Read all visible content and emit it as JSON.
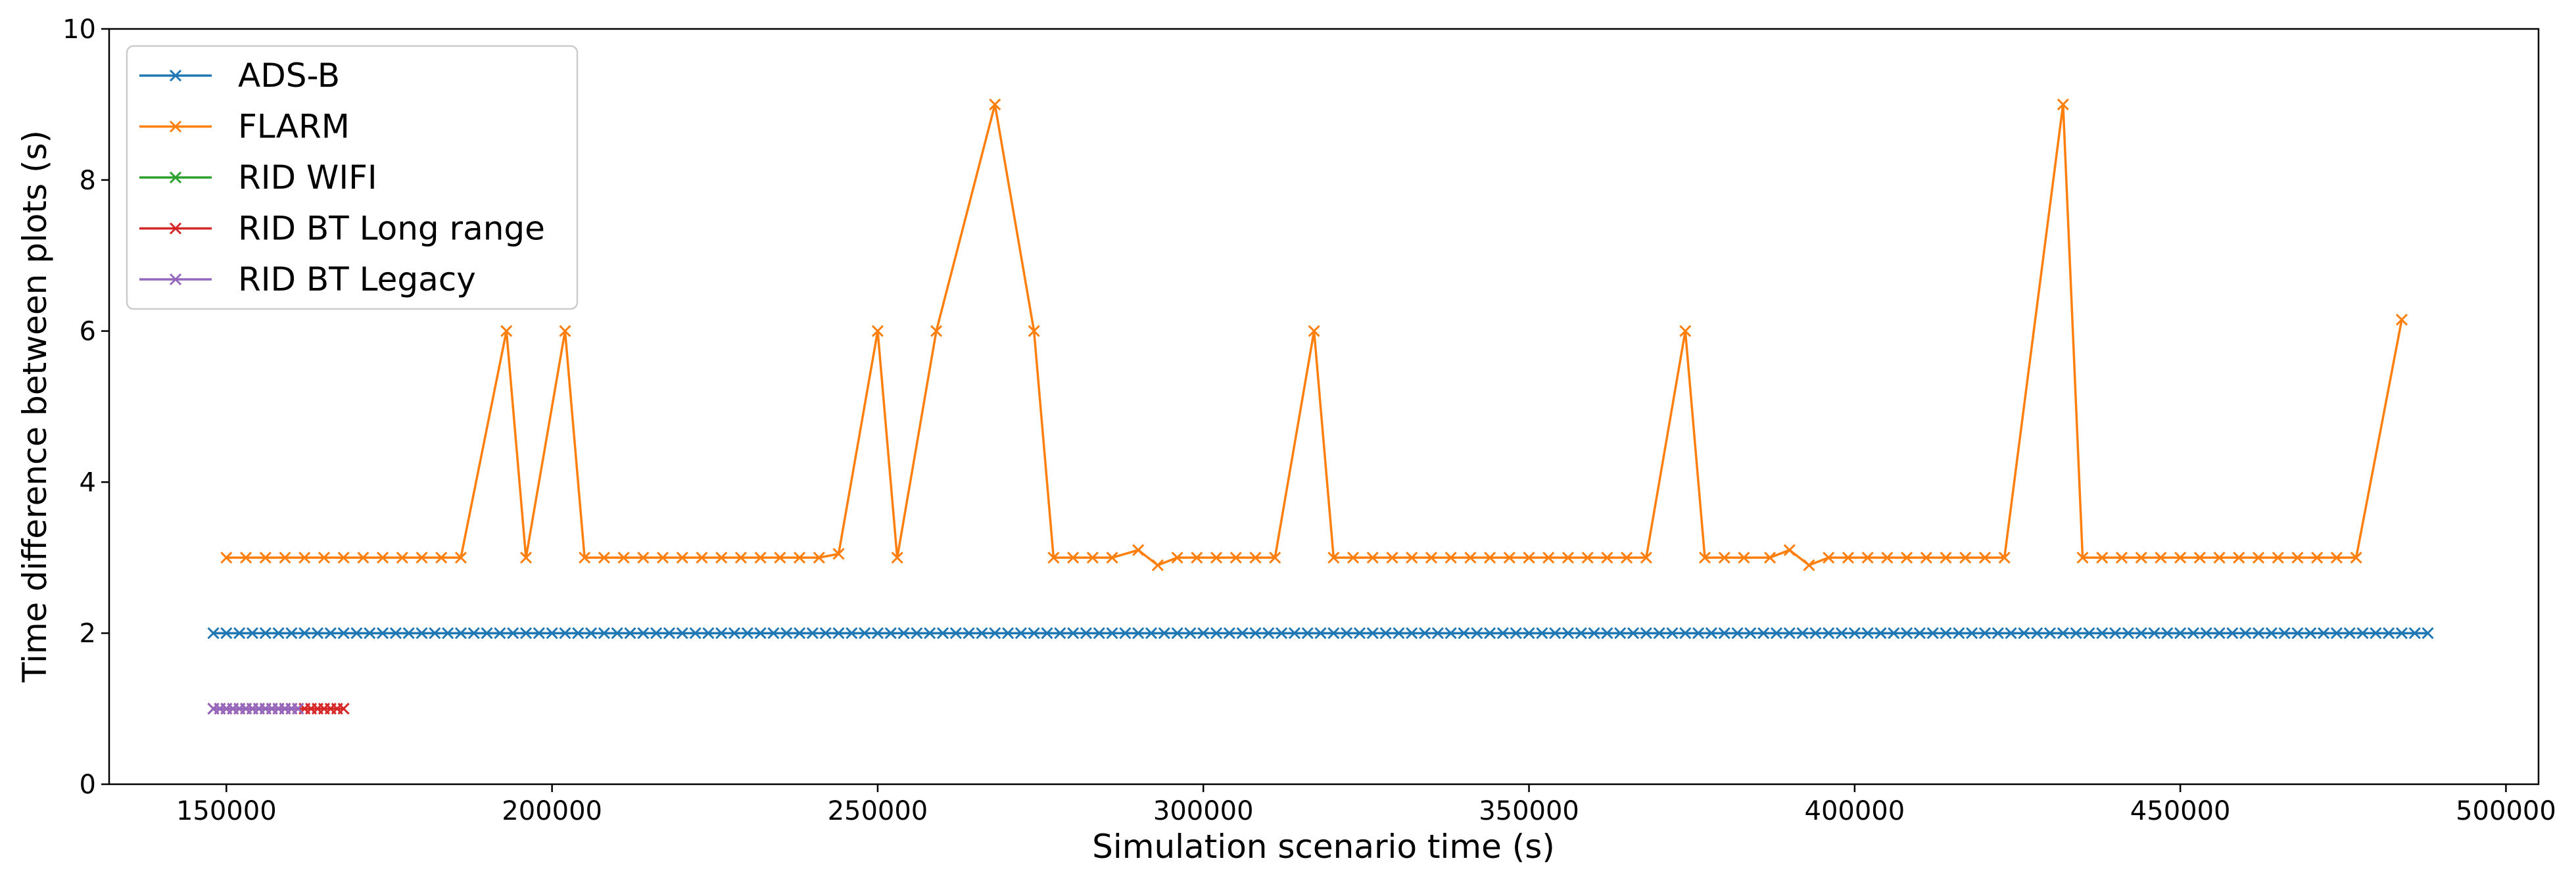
{
  "chart_data": {
    "type": "line",
    "title": "",
    "xlabel": "Simulation scenario time (s)",
    "ylabel": "Time difference between plots (s)",
    "xlim": [
      132000,
      505000
    ],
    "ylim": [
      0,
      10
    ],
    "xticks": [
      150000,
      200000,
      250000,
      300000,
      350000,
      400000,
      450000,
      500000
    ],
    "xtick_labels": [
      "150000",
      "200000",
      "250000",
      "300000",
      "350000",
      "400000",
      "450000",
      "500000"
    ],
    "yticks": [
      0,
      2,
      4,
      6,
      8,
      10
    ],
    "ytick_labels": [
      "0",
      "2",
      "4",
      "6",
      "8",
      "10"
    ],
    "grid": false,
    "legend_position": "top-left",
    "marker": "x",
    "series": [
      {
        "name": "ADS-B",
        "color": "#1f77b4",
        "x_start": 148000,
        "x_step": 2000,
        "x_end": 488000,
        "y_constant": 2.0
      },
      {
        "name": "FLARM",
        "color": "#ff7f0e",
        "points": [
          [
            150000,
            3
          ],
          [
            153000,
            3
          ],
          [
            156000,
            3
          ],
          [
            159000,
            3
          ],
          [
            162000,
            3
          ],
          [
            165000,
            3
          ],
          [
            168000,
            3
          ],
          [
            171000,
            3
          ],
          [
            174000,
            3
          ],
          [
            177000,
            3
          ],
          [
            180000,
            3
          ],
          [
            183000,
            3
          ],
          [
            186000,
            3
          ],
          [
            193000,
            6
          ],
          [
            196000,
            3
          ],
          [
            202000,
            6
          ],
          [
            205000,
            3
          ],
          [
            208000,
            3
          ],
          [
            211000,
            3
          ],
          [
            214000,
            3
          ],
          [
            217000,
            3
          ],
          [
            220000,
            3
          ],
          [
            223000,
            3
          ],
          [
            226000,
            3
          ],
          [
            229000,
            3
          ],
          [
            232000,
            3
          ],
          [
            235000,
            3
          ],
          [
            238000,
            3
          ],
          [
            241000,
            3
          ],
          [
            244000,
            3.05
          ],
          [
            250000,
            6
          ],
          [
            253000,
            3
          ],
          [
            259000,
            6
          ],
          [
            268000,
            9
          ],
          [
            274000,
            6
          ],
          [
            277000,
            3
          ],
          [
            280000,
            3
          ],
          [
            283000,
            3
          ],
          [
            286000,
            3
          ],
          [
            290000,
            3.1
          ],
          [
            293000,
            2.9
          ],
          [
            296000,
            3
          ],
          [
            299000,
            3
          ],
          [
            302000,
            3
          ],
          [
            305000,
            3
          ],
          [
            308000,
            3
          ],
          [
            311000,
            3
          ],
          [
            317000,
            6
          ],
          [
            320000,
            3
          ],
          [
            323000,
            3
          ],
          [
            326000,
            3
          ],
          [
            329000,
            3
          ],
          [
            332000,
            3
          ],
          [
            335000,
            3
          ],
          [
            338000,
            3
          ],
          [
            341000,
            3
          ],
          [
            344000,
            3
          ],
          [
            347000,
            3
          ],
          [
            350000,
            3
          ],
          [
            353000,
            3
          ],
          [
            356000,
            3
          ],
          [
            359000,
            3
          ],
          [
            362000,
            3
          ],
          [
            365000,
            3
          ],
          [
            368000,
            3
          ],
          [
            374000,
            6
          ],
          [
            377000,
            3
          ],
          [
            380000,
            3
          ],
          [
            383000,
            3
          ],
          [
            387000,
            3
          ],
          [
            390000,
            3.1
          ],
          [
            393000,
            2.9
          ],
          [
            396000,
            3
          ],
          [
            399000,
            3
          ],
          [
            402000,
            3
          ],
          [
            405000,
            3
          ],
          [
            408000,
            3
          ],
          [
            411000,
            3
          ],
          [
            414000,
            3
          ],
          [
            417000,
            3
          ],
          [
            420000,
            3
          ],
          [
            423000,
            3
          ],
          [
            432000,
            9
          ],
          [
            435000,
            3
          ],
          [
            438000,
            3
          ],
          [
            441000,
            3
          ],
          [
            444000,
            3
          ],
          [
            447000,
            3
          ],
          [
            450000,
            3
          ],
          [
            453000,
            3
          ],
          [
            456000,
            3
          ],
          [
            459000,
            3
          ],
          [
            462000,
            3
          ],
          [
            465000,
            3
          ],
          [
            468000,
            3
          ],
          [
            471000,
            3
          ],
          [
            474000,
            3
          ],
          [
            477000,
            3
          ],
          [
            484000,
            6.15
          ]
        ]
      },
      {
        "name": "RID WIFI",
        "color": "#2ca02c",
        "points": []
      },
      {
        "name": "RID BT Long range",
        "color": "#d62728",
        "x_start": 148000,
        "x_step": 1000,
        "x_end": 168000,
        "y_constant": 1.0
      },
      {
        "name": "RID BT Legacy",
        "color": "#9467bd",
        "x_start": 148000,
        "x_step": 1000,
        "x_end": 161000,
        "y_constant": 1.0
      }
    ]
  }
}
